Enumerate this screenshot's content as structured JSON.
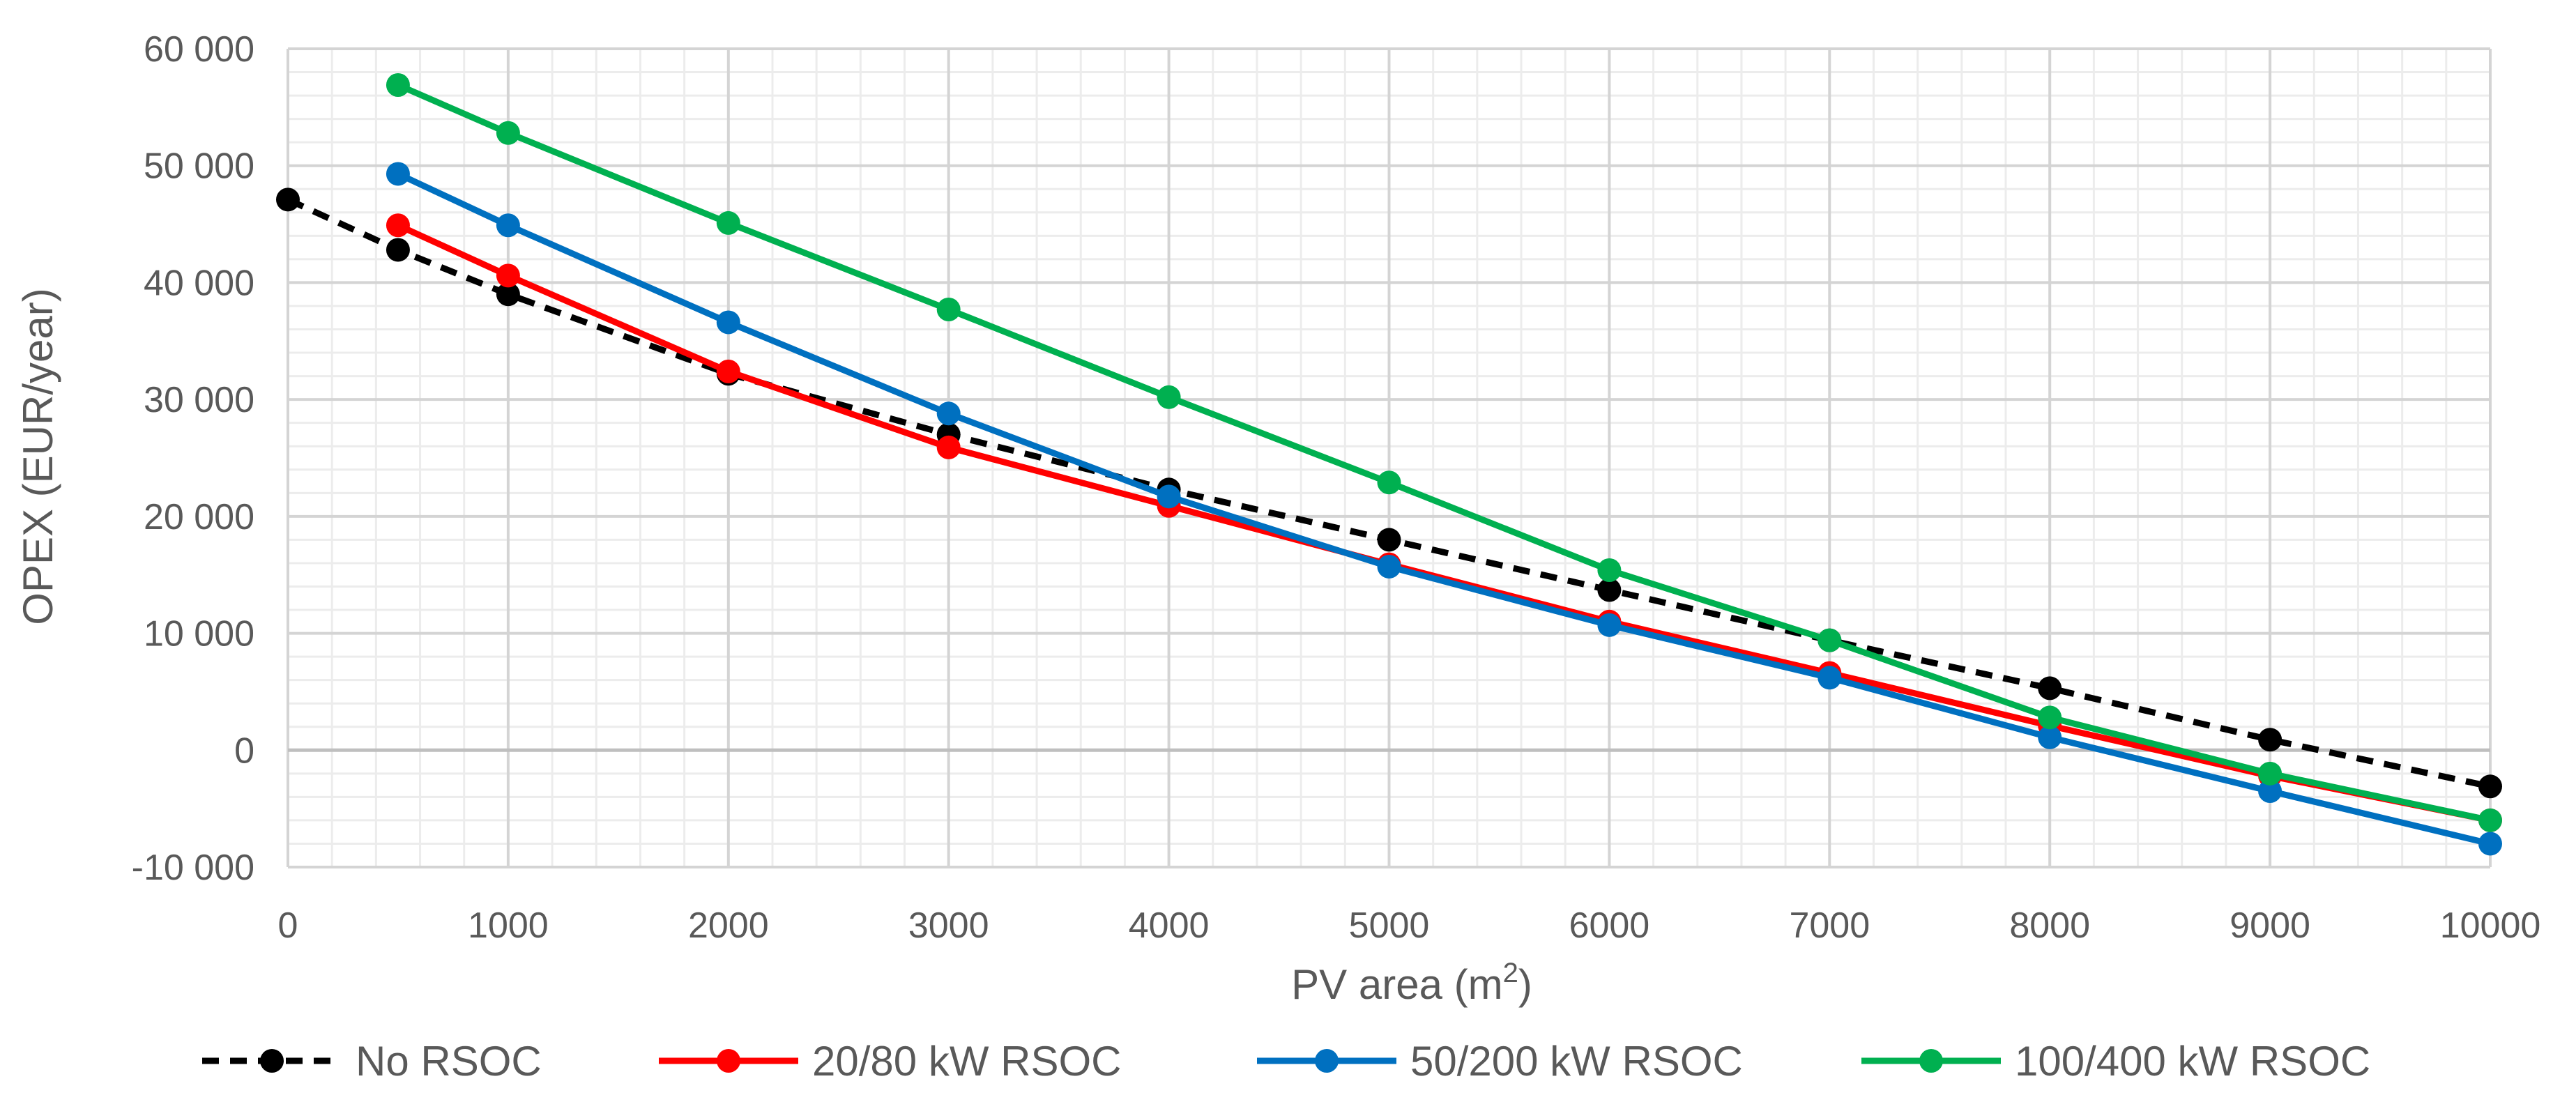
{
  "chart_data": {
    "type": "line",
    "title": "",
    "xlabel": "PV area (m",
    "xlabel_sup": "2",
    "xlabel_end": ")",
    "ylabel": "OPEX (EUR/year)",
    "xlim": [
      0,
      10000
    ],
    "ylim": [
      -10000,
      60000
    ],
    "x_major_step": 1000,
    "x_minor_step": 200,
    "y_major_step": 10000,
    "y_minor_step": 2000,
    "grid": true,
    "legend_position": "bottom",
    "x_tick_labels": [
      "0",
      "1000",
      "2000",
      "3000",
      "4000",
      "5000",
      "6000",
      "7000",
      "8000",
      "9000",
      "10000"
    ],
    "y_tick_labels": [
      "-10 000",
      "0",
      "10 000",
      "20 000",
      "30 000",
      "40 000",
      "50 000",
      "60 000"
    ],
    "series": [
      {
        "name": "No RSOC",
        "color": "#000000",
        "dashed": true,
        "x": [
          0,
          500,
          1000,
          2000,
          3000,
          4000,
          5000,
          6000,
          7000,
          8000,
          9000,
          10000
        ],
        "values": [
          47100,
          42800,
          39000,
          32200,
          27000,
          22300,
          18000,
          13700,
          9400,
          5300,
          900,
          -3100
        ]
      },
      {
        "name": "20/80 kW RSOC",
        "color": "#ff0000",
        "dashed": false,
        "x": [
          500,
          1000,
          2000,
          3000,
          4000,
          5000,
          6000,
          7000,
          8000,
          9000,
          10000
        ],
        "values": [
          44900,
          40600,
          32400,
          25900,
          20900,
          15900,
          11000,
          6600,
          2100,
          -2200,
          -6000
        ]
      },
      {
        "name": "50/200 kW RSOC",
        "color": "#0070c0",
        "dashed": false,
        "x": [
          500,
          1000,
          2000,
          3000,
          4000,
          5000,
          6000,
          7000,
          8000,
          9000,
          10000
        ],
        "values": [
          49300,
          44900,
          36600,
          28800,
          21700,
          15700,
          10700,
          6200,
          1100,
          -3500,
          -8000
        ]
      },
      {
        "name": "100/400 kW RSOC",
        "color": "#00b050",
        "dashed": false,
        "x": [
          500,
          1000,
          2000,
          3000,
          4000,
          5000,
          6000,
          7000,
          8000,
          9000,
          10000
        ],
        "values": [
          56900,
          52800,
          45100,
          37700,
          30200,
          22900,
          15400,
          9400,
          2800,
          -2000,
          -6000
        ]
      }
    ]
  }
}
